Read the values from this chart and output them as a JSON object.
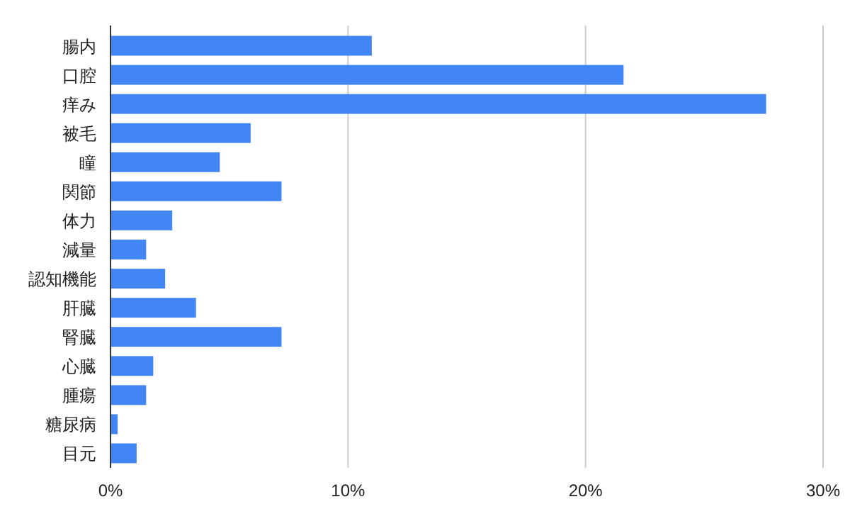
{
  "chart_data": {
    "type": "bar",
    "orientation": "horizontal",
    "categories": [
      "腸内",
      "口腔",
      "痒み",
      "被毛",
      "瞳",
      "関節",
      "体力",
      "減量",
      "認知機能",
      "肝臓",
      "腎臓",
      "心臓",
      "腫瘍",
      "糖尿病",
      "目元"
    ],
    "values": [
      11.0,
      21.6,
      27.6,
      5.9,
      4.6,
      7.2,
      2.6,
      1.5,
      2.3,
      3.6,
      7.2,
      1.8,
      1.5,
      0.3,
      1.1
    ],
    "color": "#4285f4",
    "xlim": [
      0,
      30
    ],
    "xticks": [
      {
        "value": 0,
        "label": "0%"
      },
      {
        "value": 10,
        "label": "10%"
      },
      {
        "value": 20,
        "label": "20%"
      },
      {
        "value": 30,
        "label": "30%"
      }
    ],
    "grid": "x"
  }
}
